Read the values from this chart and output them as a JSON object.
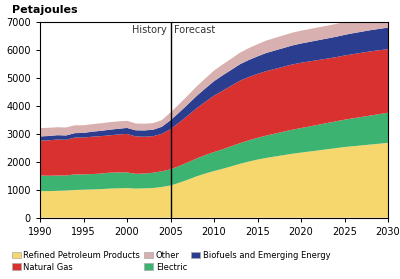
{
  "years": [
    1990,
    1991,
    1992,
    1993,
    1994,
    1995,
    1996,
    1997,
    1998,
    1999,
    2000,
    2001,
    2002,
    2003,
    2004,
    2005,
    2006,
    2007,
    2008,
    2009,
    2010,
    2011,
    2012,
    2013,
    2014,
    2015,
    2016,
    2017,
    2018,
    2019,
    2020,
    2021,
    2022,
    2023,
    2024,
    2025,
    2026,
    2027,
    2028,
    2029,
    2030
  ],
  "refined_petroleum": [
    950,
    950,
    960,
    970,
    990,
    1000,
    1010,
    1020,
    1040,
    1050,
    1060,
    1040,
    1050,
    1060,
    1100,
    1150,
    1250,
    1360,
    1480,
    1580,
    1670,
    1750,
    1840,
    1930,
    2010,
    2080,
    2140,
    2190,
    2240,
    2290,
    2330,
    2370,
    2410,
    2450,
    2490,
    2530,
    2560,
    2590,
    2620,
    2650,
    2680
  ],
  "electric": [
    560,
    550,
    550,
    540,
    560,
    550,
    550,
    560,
    570,
    570,
    560,
    530,
    530,
    550,
    560,
    580,
    600,
    620,
    640,
    660,
    680,
    700,
    720,
    740,
    760,
    780,
    800,
    820,
    840,
    860,
    880,
    900,
    920,
    940,
    960,
    980,
    1000,
    1020,
    1040,
    1060,
    1080
  ],
  "natural_gas": [
    1250,
    1270,
    1290,
    1280,
    1320,
    1320,
    1340,
    1340,
    1340,
    1360,
    1380,
    1340,
    1320,
    1310,
    1340,
    1440,
    1560,
    1680,
    1800,
    1910,
    2020,
    2100,
    2170,
    2240,
    2270,
    2290,
    2310,
    2320,
    2330,
    2340,
    2340,
    2330,
    2320,
    2310,
    2300,
    2300,
    2300,
    2300,
    2300,
    2290,
    2280
  ],
  "biofuels": [
    150,
    155,
    155,
    155,
    158,
    165,
    180,
    190,
    200,
    205,
    215,
    220,
    225,
    230,
    255,
    320,
    360,
    400,
    440,
    480,
    520,
    550,
    570,
    590,
    610,
    630,
    650,
    660,
    670,
    680,
    690,
    700,
    710,
    720,
    730,
    740,
    750,
    755,
    760,
    765,
    770
  ],
  "other": [
    300,
    295,
    285,
    285,
    280,
    275,
    270,
    270,
    270,
    265,
    255,
    245,
    240,
    238,
    238,
    280,
    300,
    320,
    340,
    360,
    380,
    390,
    400,
    415,
    425,
    435,
    445,
    450,
    455,
    460,
    460,
    460,
    460,
    460,
    460,
    460,
    460,
    460,
    460,
    460,
    460
  ],
  "colors": {
    "refined_petroleum": "#f5d76e",
    "electric": "#3cb371",
    "natural_gas": "#d93030",
    "biofuels": "#2a3d8f",
    "other": "#d9b0b0"
  },
  "ylabel": "Petajoules",
  "ylim": [
    0,
    7000
  ],
  "yticks": [
    0,
    1000,
    2000,
    3000,
    4000,
    5000,
    6000,
    7000
  ],
  "xlim": [
    1990,
    2030
  ],
  "xticks": [
    1990,
    1995,
    2000,
    2005,
    2010,
    2015,
    2020,
    2025,
    2030
  ],
  "history_year": 2005,
  "background_color": "#ffffff"
}
